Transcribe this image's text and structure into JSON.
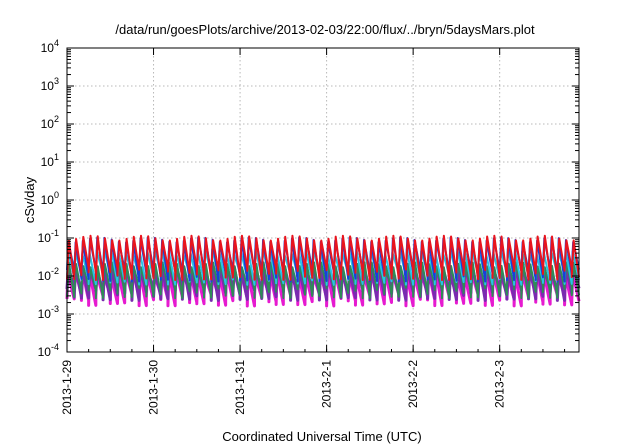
{
  "chart_data": {
    "type": "line",
    "title": "/data/run/goesPlots/archive/2013-02-03/22:00/flux/../bryn/5daysMars.plot",
    "xlabel": "Coordinated Universal Time (UTC)",
    "ylabel": "cSv/day",
    "y_scale": "log",
    "ylim": [
      0.0001,
      10000
    ],
    "y_ticks": [
      {
        "value": 0.0001,
        "base": "10",
        "exp": "-4"
      },
      {
        "value": 0.001,
        "base": "10",
        "exp": "-3"
      },
      {
        "value": 0.01,
        "base": "10",
        "exp": "-2"
      },
      {
        "value": 0.1,
        "base": "10",
        "exp": "-1"
      },
      {
        "value": 1,
        "base": "10",
        "exp": "0"
      },
      {
        "value": 10,
        "base": "10",
        "exp": "1"
      },
      {
        "value": 100,
        "base": "10",
        "exp": "2"
      },
      {
        "value": 1000,
        "base": "10",
        "exp": "3"
      },
      {
        "value": 10000,
        "base": "10",
        "exp": "4"
      }
    ],
    "xlim": [
      "2013-01-29T00:00",
      "2013-02-03T22:00"
    ],
    "x_ticks": [
      "2013-1-29",
      "2013-1-30",
      "2013-1-31",
      "2013-2-1",
      "2013-2-2",
      "2013-2-3"
    ],
    "grid": true,
    "legend": "none",
    "pattern": {
      "sawtooth_period_hours": 2,
      "note_visible": "dense periodic sawtooth of overlapping energy-channel traces"
    },
    "series": [
      {
        "color": "#e8141e",
        "peak_value": 0.1,
        "trough_value": 0.012
      },
      {
        "color": "#1a3fd8",
        "peak_value": 0.09,
        "trough_value": 0.011
      },
      {
        "color": "#27c3e6",
        "peak_value": 0.045,
        "trough_value": 0.009
      },
      {
        "color": "#2e8b57",
        "peak_value": 0.02,
        "trough_value": 0.004
      },
      {
        "color": "#7a2bb0",
        "peak_value": 0.016,
        "trough_value": 0.0035
      },
      {
        "color": "#e61ad0",
        "peak_value": 0.012,
        "trough_value": 0.0025
      }
    ]
  }
}
